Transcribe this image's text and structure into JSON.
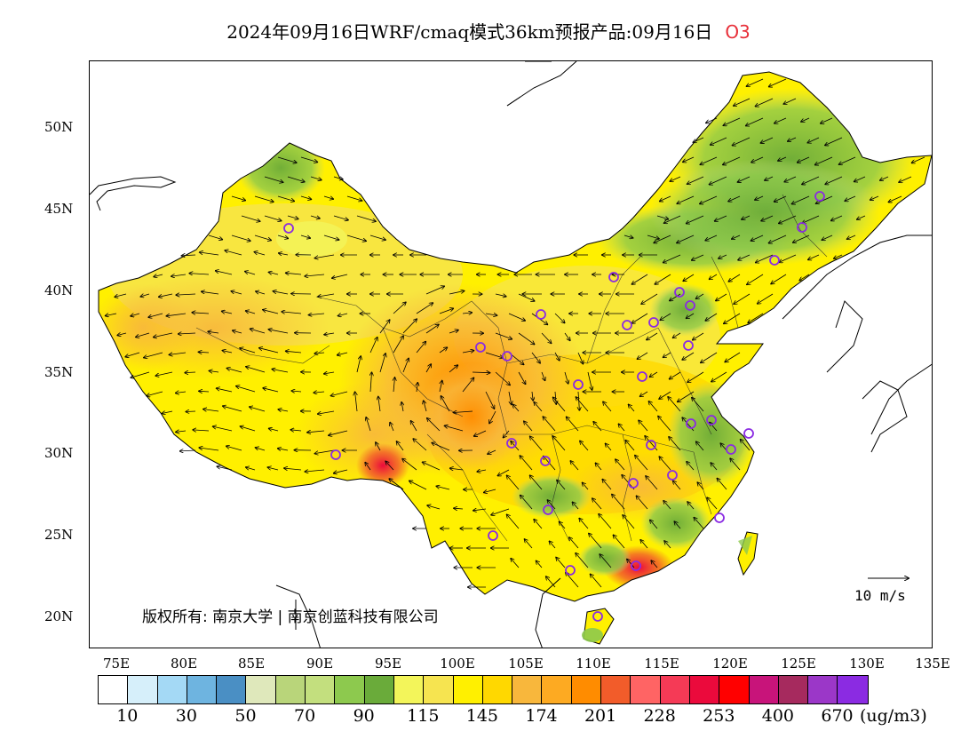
{
  "title": {
    "main": "2024年09月16日WRF/cmaq模式36km预报产品:09月16日",
    "pollutant": "O3"
  },
  "lat_labels": [
    "50N",
    "45N",
    "40N",
    "35N",
    "30N",
    "25N",
    "20N"
  ],
  "lon_labels": [
    "75E",
    "80E",
    "85E",
    "90E",
    "95E",
    "100E",
    "105E",
    "110E",
    "115E",
    "120E",
    "125E",
    "130E",
    "135E"
  ],
  "copyright": "版权所有: 南京大学 | 南京创蓝科技有限公司",
  "wind_reference": "10 m/s",
  "colorbar": {
    "colors": [
      "#ffffff",
      "#d6effa",
      "#a4d9f5",
      "#6eb4e0",
      "#4a8fc4",
      "#dfe8bb",
      "#b9d57a",
      "#c3df7e",
      "#8dc94e",
      "#6aab3a",
      "#f3f55a",
      "#f6e450",
      "#fff000",
      "#ffd800",
      "#f8b73c",
      "#fdaa22",
      "#ff8c00",
      "#f25c2a",
      "#ff6464",
      "#f53a56",
      "#eb0a3c",
      "#ff0000",
      "#c8147a",
      "#a62a5e",
      "#9b37c8",
      "#8b2be2"
    ],
    "labels": [
      "10",
      "30",
      "50",
      "70",
      "90",
      "115",
      "145",
      "174",
      "201",
      "228",
      "253",
      "400",
      "670"
    ],
    "unit": "(ug/m3)"
  }
}
